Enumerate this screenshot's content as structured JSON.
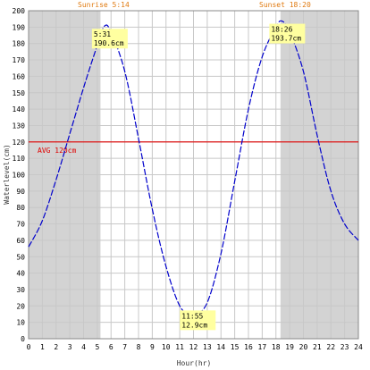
{
  "chart_data": {
    "type": "line",
    "title": "",
    "xlabel": "Hour(hr)",
    "ylabel": "Waterlevel(cm)",
    "xlim": [
      0,
      24
    ],
    "ylim": [
      0,
      200
    ],
    "x_ticks": [
      "0",
      "1",
      "2",
      "3",
      "4",
      "5",
      "6",
      "7",
      "8",
      "9",
      "10",
      "11",
      "12",
      "13",
      "14",
      "15",
      "16",
      "17",
      "18",
      "19",
      "20",
      "21",
      "22",
      "23",
      "24"
    ],
    "y_ticks": [
      "0",
      "10",
      "20",
      "30",
      "40",
      "50",
      "60",
      "70",
      "80",
      "90",
      "100",
      "110",
      "120",
      "130",
      "140",
      "150",
      "160",
      "170",
      "180",
      "190",
      "200"
    ],
    "grid": true,
    "sunrise": {
      "label": "Sunrise 5:14",
      "hour": 5.23
    },
    "sunset": {
      "label": "Sunset 18:20",
      "hour": 18.33
    },
    "average": {
      "label": "AVG 120cm",
      "value": 120
    },
    "series": [
      {
        "name": "",
        "color": "#0000cc",
        "x": [
          0,
          1,
          2,
          3,
          4,
          5,
          5.52,
          6,
          7,
          8,
          9,
          10,
          11,
          11.92,
          12,
          13,
          14,
          15,
          16,
          17,
          18,
          18.43,
          19,
          20,
          21,
          22,
          23,
          24
        ],
        "y": [
          56,
          72,
          97,
          125,
          153,
          179,
          190.6,
          187,
          163,
          122,
          79,
          44,
          20,
          12.9,
          13,
          22,
          52,
          96,
          140,
          172,
          190,
          193.7,
          187,
          163,
          124,
          90,
          70,
          60
        ]
      }
    ],
    "annotations": [
      {
        "time": "5:31",
        "value": "190.6cm",
        "x": 5.52,
        "y": 190.6
      },
      {
        "time": "11:55",
        "value": "12.9cm",
        "x": 11.92,
        "y": 12.9
      },
      {
        "time": "18:26",
        "value": "193.7cm",
        "x": 18.43,
        "y": 193.7
      }
    ],
    "colors": {
      "night_shade": "#d3d3d3",
      "grid": "#c8c8c8",
      "line": "#0000cc",
      "average": "#e00000",
      "sun_text": "#e07a10",
      "label_bg": "#ffffa0"
    }
  }
}
